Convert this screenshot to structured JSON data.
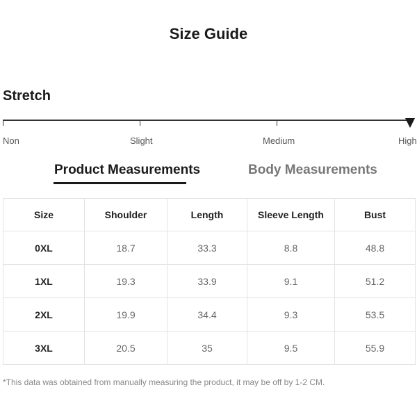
{
  "title": "Size Guide",
  "stretch": {
    "label": "Stretch",
    "levels": [
      "Non",
      "Slight",
      "Medium",
      "High"
    ],
    "selected": "High"
  },
  "tabs": {
    "product": "Product Measurements",
    "body": "Body Measurements",
    "active": "Product Measurements"
  },
  "table": {
    "headers": [
      "Size",
      "Shoulder",
      "Length",
      "Sleeve Length",
      "Bust"
    ],
    "rows": [
      [
        "0XL",
        "18.7",
        "33.3",
        "8.8",
        "48.8"
      ],
      [
        "1XL",
        "19.3",
        "33.9",
        "9.1",
        "51.2"
      ],
      [
        "2XL",
        "19.9",
        "34.4",
        "9.3",
        "53.5"
      ],
      [
        "3XL",
        "20.5",
        "35",
        "9.5",
        "55.9"
      ]
    ]
  },
  "note": "*This data was obtained from manually measuring the product, it may be off by 1-2 CM."
}
